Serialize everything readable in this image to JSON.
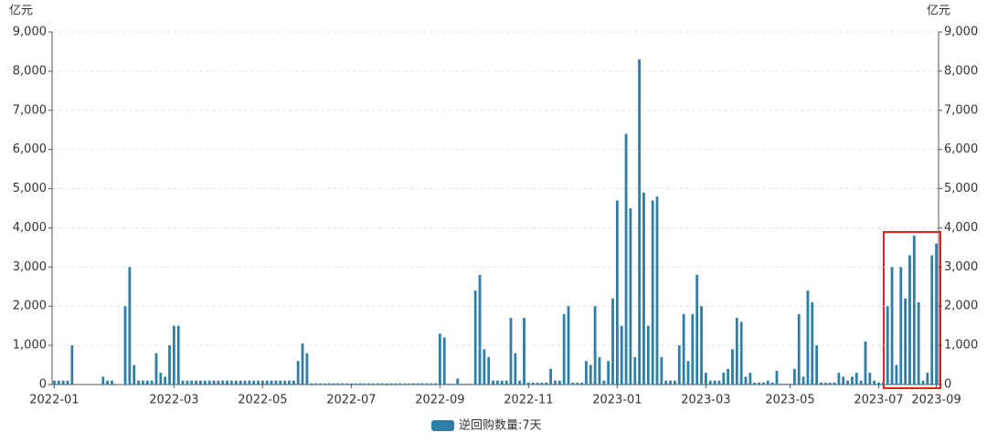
{
  "chart_data": {
    "type": "bar",
    "y_unit": "亿元",
    "y2_unit": "亿元",
    "color": "#2e7ea6",
    "legend": "逆回购数量:7天",
    "categories": [
      "2022-01",
      null,
      null,
      null,
      null,
      null,
      null,
      null,
      null,
      null,
      null,
      null,
      null,
      null,
      null,
      null,
      null,
      null,
      null,
      null,
      null,
      null,
      null,
      null,
      null,
      null,
      null,
      "2022-03",
      null,
      null,
      null,
      null,
      null,
      null,
      null,
      null,
      null,
      null,
      null,
      null,
      null,
      null,
      null,
      null,
      null,
      null,
      null,
      "2022-05",
      null,
      null,
      null,
      null,
      null,
      null,
      null,
      null,
      null,
      null,
      null,
      null,
      null,
      null,
      null,
      null,
      null,
      null,
      null,
      "2022-07",
      null,
      null,
      null,
      null,
      null,
      null,
      null,
      null,
      null,
      null,
      null,
      null,
      null,
      null,
      null,
      null,
      null,
      null,
      null,
      "2022-09",
      null,
      null,
      null,
      null,
      null,
      null,
      null,
      null,
      null,
      null,
      null,
      null,
      null,
      null,
      null,
      null,
      null,
      null,
      null,
      "2022-11",
      null,
      null,
      null,
      null,
      null,
      null,
      null,
      null,
      null,
      null,
      null,
      null,
      null,
      null,
      null,
      null,
      null,
      null,
      null,
      "2023-01",
      null,
      null,
      null,
      null,
      null,
      null,
      null,
      null,
      null,
      null,
      null,
      null,
      null,
      null,
      null,
      null,
      null,
      null,
      null,
      "2023-03",
      null,
      null,
      null,
      null,
      null,
      null,
      null,
      null,
      null,
      null,
      null,
      null,
      null,
      null,
      null,
      null,
      null,
      null,
      "2023-05",
      null,
      null,
      null,
      null,
      null,
      null,
      null,
      null,
      null,
      null,
      null,
      null,
      null,
      null,
      null,
      null,
      null,
      null,
      null,
      "2023-07",
      null,
      null,
      null,
      null,
      null,
      null,
      null,
      null,
      null,
      null,
      null,
      null,
      "2023-09"
    ],
    "values": [
      100,
      100,
      100,
      100,
      1000,
      0,
      0,
      0,
      0,
      0,
      0,
      200,
      100,
      100,
      0,
      0,
      2000,
      3000,
      500,
      100,
      100,
      100,
      100,
      800,
      300,
      200,
      1000,
      1500,
      1500,
      100,
      100,
      100,
      100,
      100,
      100,
      100,
      100,
      100,
      100,
      100,
      100,
      100,
      100,
      100,
      100,
      100,
      100,
      100,
      100,
      100,
      100,
      100,
      100,
      100,
      100,
      600,
      1050,
      800,
      30,
      30,
      30,
      30,
      30,
      30,
      30,
      30,
      30,
      30,
      30,
      30,
      30,
      30,
      30,
      30,
      30,
      30,
      30,
      30,
      30,
      30,
      30,
      30,
      30,
      30,
      30,
      30,
      30,
      1300,
      1200,
      20,
      20,
      150,
      20,
      20,
      20,
      2400,
      2800,
      900,
      700,
      100,
      100,
      100,
      100,
      1700,
      800,
      100,
      1700,
      50,
      50,
      50,
      50,
      50,
      400,
      100,
      100,
      1800,
      2000,
      50,
      50,
      50,
      600,
      500,
      2000,
      700,
      100,
      600,
      2200,
      4700,
      1500,
      6400,
      4500,
      700,
      8300,
      4900,
      1500,
      4700,
      4800,
      700,
      100,
      100,
      100,
      1000,
      1800,
      600,
      1800,
      2800,
      2000,
      300,
      100,
      100,
      100,
      300,
      400,
      900,
      1700,
      1600,
      200,
      300,
      50,
      50,
      50,
      100,
      50,
      350,
      20,
      20,
      20,
      400,
      1800,
      200,
      2400,
      2100,
      1000,
      50,
      50,
      50,
      50,
      300,
      200,
      100,
      200,
      300,
      100,
      1100,
      300,
      100,
      50,
      50,
      2000,
      3000,
      500,
      3000,
      2200,
      3300,
      3800,
      2100,
      100,
      300,
      3300,
      3600
    ],
    "ylim": [
      0,
      9000
    ],
    "yticks": [
      0,
      {
        "value": 1000,
        "label": "1,000"
      },
      {
        "value": 2000,
        "label": "2,000"
      },
      {
        "value": 3000,
        "label": "3,000"
      },
      {
        "value": 4000,
        "label": "4,000"
      },
      {
        "value": 5000,
        "label": "5,000"
      },
      {
        "value": 6000,
        "label": "6,000"
      },
      {
        "value": 7000,
        "label": "7,000"
      },
      {
        "value": 8000,
        "label": "8,000"
      },
      {
        "value": 9000,
        "label": "9,000"
      }
    ],
    "y2lim": [
      0,
      9000
    ],
    "y2ticks": [
      0,
      {
        "value": 1000,
        "label": "1,000"
      },
      {
        "value": 2000,
        "label": "2,000"
      },
      {
        "value": 3000,
        "label": "3,000"
      },
      {
        "value": 4000,
        "label": "4,000"
      },
      {
        "value": 5000,
        "label": "5,000"
      },
      {
        "value": 6000,
        "label": "6,000"
      },
      {
        "value": 7000,
        "label": "7,000"
      },
      {
        "value": 8000,
        "label": "8,000"
      },
      {
        "value": 9000,
        "label": "9,000"
      }
    ],
    "grid": true
  }
}
